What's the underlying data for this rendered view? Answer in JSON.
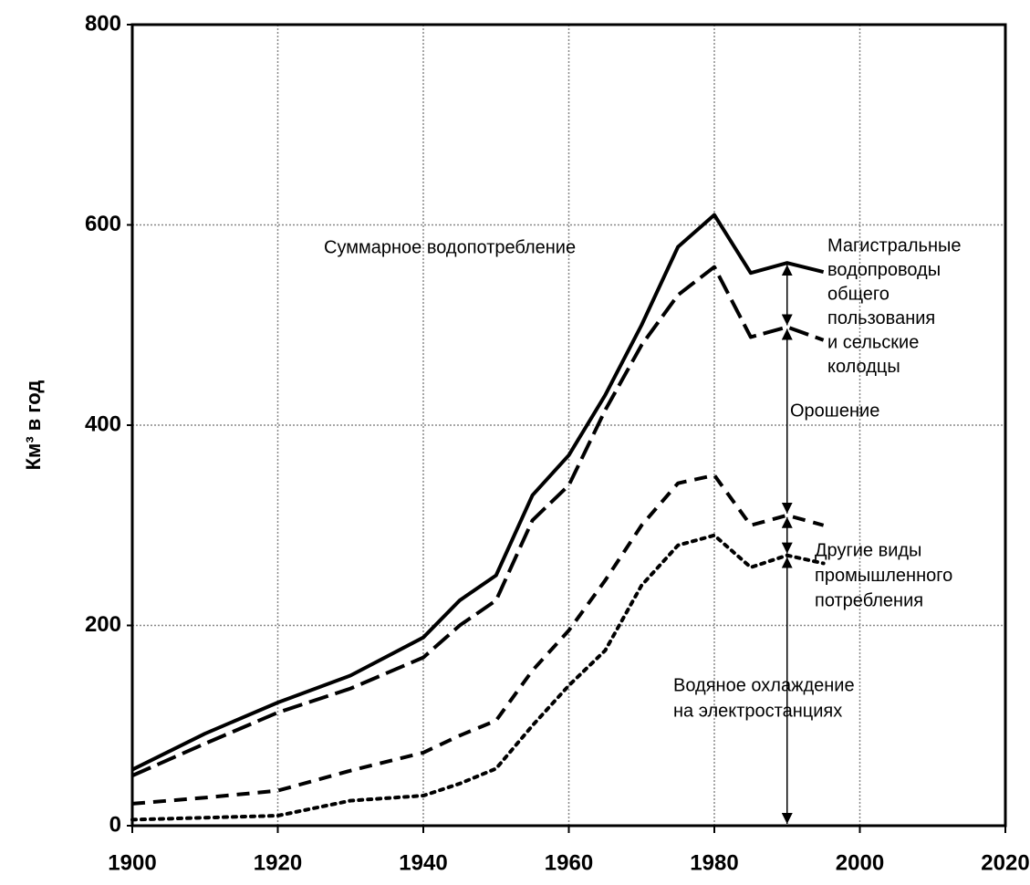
{
  "chart_data": {
    "type": "line",
    "ylabel": "Км³ в год",
    "x": [
      1900,
      1910,
      1920,
      1930,
      1940,
      1945,
      1950,
      1955,
      1960,
      1965,
      1970,
      1975,
      1980,
      1985,
      1990,
      1995
    ],
    "series": [
      {
        "color": "#000000",
        "dash": "solid",
        "values": [
          56,
          92,
          123,
          150,
          188,
          225,
          250,
          330,
          370,
          430,
          500,
          578,
          610,
          552,
          562,
          553
        ]
      },
      {
        "color": "#000000",
        "dash": "long-dash",
        "values": [
          50,
          82,
          113,
          137,
          168,
          200,
          225,
          305,
          340,
          415,
          480,
          530,
          558,
          488,
          498,
          485
        ]
      },
      {
        "color": "#000000",
        "dash": "dash",
        "values": [
          22,
          28,
          35,
          55,
          73,
          90,
          105,
          155,
          195,
          245,
          300,
          342,
          350,
          300,
          310,
          300
        ]
      },
      {
        "color": "#000000",
        "dash": "dot",
        "values": [
          6,
          8,
          10,
          25,
          30,
          42,
          57,
          100,
          140,
          175,
          240,
          280,
          290,
          258,
          270,
          262
        ]
      }
    ],
    "annotations": [
      [
        "Суммарное водопотребление"
      ],
      [
        "Магистральные",
        "водопроводы",
        "общего",
        "пользования",
        "и сельские",
        "колодцы"
      ],
      [
        "Орошение"
      ],
      [
        "Другие виды",
        "промышленного",
        "потребления"
      ],
      [
        "Водяное охлаждение",
        "на электростанциях"
      ]
    ],
    "xlim": [
      1900,
      2020
    ],
    "xticks": [
      1900,
      1920,
      1940,
      1960,
      1980,
      2000,
      2020
    ],
    "ylim": [
      0,
      800
    ],
    "yticks": [
      0,
      200,
      400,
      600,
      800
    ],
    "grid": true
  }
}
